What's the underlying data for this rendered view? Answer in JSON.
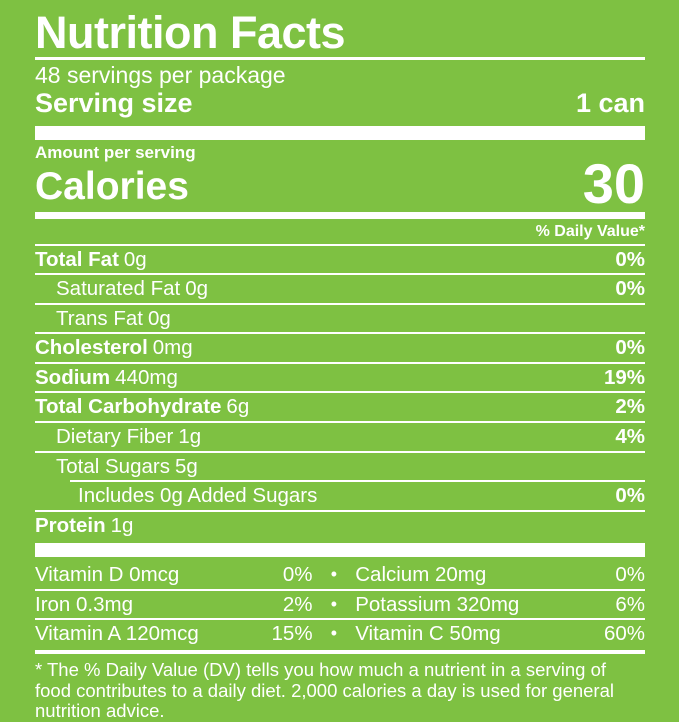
{
  "colors": {
    "background": "#7ec142",
    "text": "#ffffff"
  },
  "header": {
    "title": "Nutrition Facts",
    "servings_per_package": "48 servings per package",
    "serving_size_label": "Serving size",
    "serving_size_value": "1 can"
  },
  "calories": {
    "amount_per_serving_label": "Amount per serving",
    "label": "Calories",
    "value": "30"
  },
  "daily_value_header": "% Daily Value*",
  "nutrients": [
    {
      "name": "Total Fat",
      "amount": "0g",
      "dv": "0%"
    },
    {
      "name": "Saturated Fat",
      "amount": "0g",
      "dv": "0%"
    },
    {
      "name": "Trans Fat",
      "amount": "0g",
      "dv": ""
    },
    {
      "name": "Cholesterol",
      "amount": "0mg",
      "dv": "0%"
    },
    {
      "name": "Sodium",
      "amount": "440mg",
      "dv": "19%"
    },
    {
      "name": "Total Carbohydrate",
      "amount": "6g",
      "dv": "2%"
    },
    {
      "name": "Dietary Fiber",
      "amount": "1g",
      "dv": "4%"
    },
    {
      "name": "Total Sugars",
      "amount": "5g",
      "dv": ""
    },
    {
      "name": "Includes 0g Added Sugars",
      "amount": "",
      "dv": "0%"
    },
    {
      "name": "Protein",
      "amount": "1g",
      "dv": ""
    }
  ],
  "micronutrients": [
    {
      "left_label": "Vitamin D 0mcg",
      "left_dv": "0%",
      "bullet": "•",
      "right_label": "Calcium 20mg",
      "right_dv": "0%"
    },
    {
      "left_label": "Iron 0.3mg",
      "left_dv": "2%",
      "bullet": "•",
      "right_label": "Potassium 320mg",
      "right_dv": "6%"
    },
    {
      "left_label": "Vitamin A 120mcg",
      "left_dv": "15%",
      "bullet": "•",
      "right_label": "Vitamin C 50mg",
      "right_dv": "60%"
    }
  ],
  "footnote": "* The % Daily Value (DV) tells you how much a nutrient in a serving of food contributes to a daily diet. 2,000 calories a day is used for general nutrition advice."
}
